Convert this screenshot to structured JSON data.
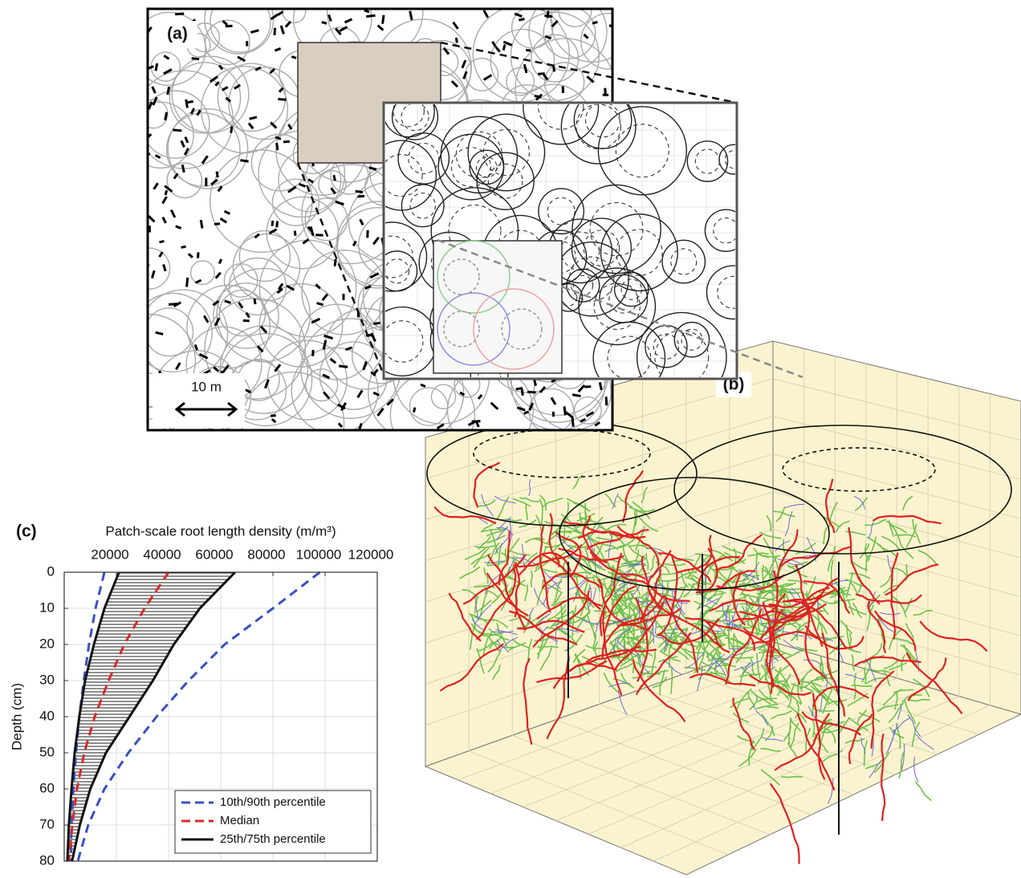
{
  "panels": {
    "a": {
      "label": "(a)",
      "scale_label": "10 m"
    },
    "b": {
      "label": "(b)"
    }
  },
  "chart_data": {
    "type": "line",
    "panel_label": "(c)",
    "x_label": "Patch-scale root length density (m/m³)",
    "y_label": "Depth (cm)",
    "y": [
      0,
      10,
      20,
      30,
      40,
      50,
      60,
      70,
      80
    ],
    "xlim": [
      0,
      120000
    ],
    "xticks": [
      20000,
      40000,
      60000,
      80000,
      100000,
      120000
    ],
    "ylim": [
      0,
      80
    ],
    "y_inverted": true,
    "yticks": [
      0,
      10,
      20,
      30,
      40,
      50,
      60,
      70,
      80
    ],
    "grid": true,
    "legend": "lower right",
    "series": [
      {
        "name": "10th/90th percentile",
        "color": "#3a4fc2",
        "style": "dashed",
        "values": [
          15400,
          12000,
          9500,
          7500,
          5800,
          4500,
          3500,
          2800,
          2500
        ],
        "upper_values": [
          98000,
          80000,
          61500,
          47700,
          35400,
          24600,
          15400,
          9200,
          5200
        ]
      },
      {
        "name": "Median",
        "color": "#d82a2a",
        "style": "dashed",
        "values": [
          40000,
          30800,
          23000,
          17000,
          11700,
          7700,
          4900,
          3100,
          1800
        ]
      },
      {
        "name": "25th/75th percentile",
        "color": "#111111",
        "style": "solid",
        "fill": "hatched",
        "values": [
          21000,
          15400,
          11400,
          8000,
          5800,
          4000,
          2800,
          1800,
          1200
        ],
        "upper_values": [
          65500,
          52000,
          42000,
          34000,
          25000,
          16000,
          10000,
          6000,
          3000
        ]
      }
    ]
  }
}
